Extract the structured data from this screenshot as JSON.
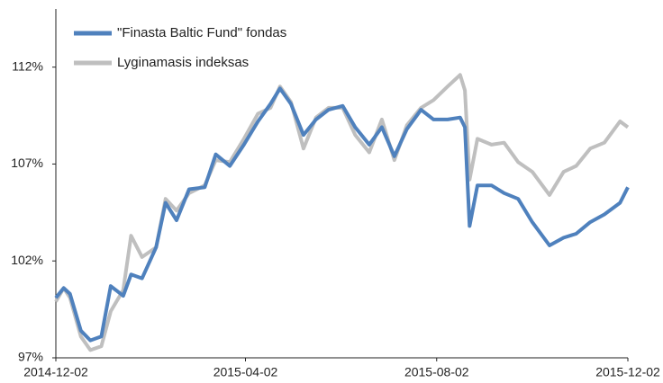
{
  "chart_data": {
    "type": "line",
    "x": [
      "2014-12-02",
      "2014-12-07",
      "2014-12-11",
      "2014-12-18",
      "2014-12-24",
      "2014-12-31",
      "2015-01-06",
      "2015-01-14",
      "2015-01-19",
      "2015-01-26",
      "2015-02-04",
      "2015-02-10",
      "2015-02-17",
      "2015-02-25",
      "2015-03-07",
      "2015-03-14",
      "2015-03-23",
      "2015-04-01",
      "2015-04-10",
      "2015-04-18",
      "2015-04-24",
      "2015-05-01",
      "2015-05-09",
      "2015-05-17",
      "2015-05-25",
      "2015-06-03",
      "2015-06-11",
      "2015-06-20",
      "2015-06-28",
      "2015-07-06",
      "2015-07-14",
      "2015-07-23",
      "2015-07-31",
      "2015-08-09",
      "2015-08-17",
      "2015-08-20",
      "2015-08-23",
      "2015-08-28",
      "2015-09-06",
      "2015-09-14",
      "2015-09-23",
      "2015-10-02",
      "2015-10-13",
      "2015-10-22",
      "2015-10-30",
      "2015-11-08",
      "2015-11-17",
      "2015-11-27",
      "2015-12-02"
    ],
    "series": [
      {
        "name": "\"Finasta Baltic Fund\" fondas",
        "color": "#4f81bd",
        "values": [
          100.1,
          100.6,
          100.3,
          98.4,
          97.9,
          98.1,
          100.7,
          100.2,
          101.3,
          101.1,
          102.7,
          105.0,
          104.1,
          105.7,
          105.8,
          107.5,
          106.9,
          108.0,
          109.2,
          110.1,
          110.9,
          110.1,
          108.5,
          109.3,
          109.8,
          110.0,
          108.9,
          108.0,
          108.9,
          107.4,
          108.8,
          109.8,
          109.3,
          109.3,
          109.4,
          108.9,
          103.8,
          105.9,
          105.9,
          105.5,
          105.2,
          104.0,
          102.8,
          103.2,
          103.4,
          104.0,
          104.4,
          105.0,
          105.8
        ]
      },
      {
        "name": "Lyginamasis indeksas",
        "color": "#bfbfbf",
        "values": [
          99.9,
          100.6,
          100.1,
          98.1,
          97.4,
          97.6,
          99.4,
          100.5,
          103.3,
          102.2,
          102.7,
          105.2,
          104.6,
          105.5,
          105.9,
          107.2,
          107.1,
          108.3,
          109.6,
          109.9,
          111.0,
          110.2,
          107.8,
          109.4,
          109.9,
          109.9,
          108.5,
          107.6,
          109.3,
          107.2,
          109.0,
          109.9,
          110.3,
          111.0,
          111.6,
          110.8,
          106.2,
          108.3,
          108.0,
          108.1,
          107.1,
          106.6,
          105.4,
          106.6,
          106.9,
          107.8,
          108.1,
          109.2,
          108.9
        ]
      }
    ],
    "xlim": [
      "2014-12-02",
      "2015-12-02"
    ],
    "xticks": [
      "2014-12-02",
      "2015-04-02",
      "2015-08-02",
      "2015-12-02"
    ],
    "ylim": [
      97,
      115
    ],
    "yticks": [
      {
        "value": 97,
        "label": "97%"
      },
      {
        "value": 102,
        "label": "102%"
      },
      {
        "value": 107,
        "label": "107%"
      },
      {
        "value": 112,
        "label": "112%"
      }
    ],
    "grid": false,
    "legend": "top-left"
  }
}
